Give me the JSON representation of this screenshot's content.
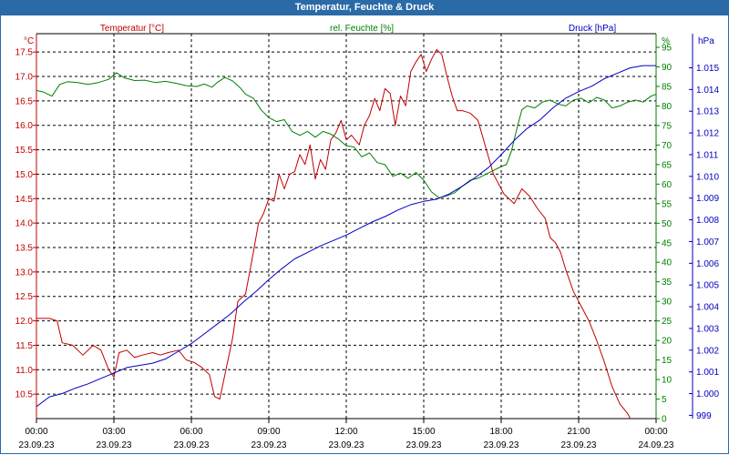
{
  "window": {
    "title": "Temperatur, Feuchte & Druck"
  },
  "chart_data": {
    "type": "line",
    "x_ticks": [
      {
        "time": "00:00",
        "date": "23.09.23"
      },
      {
        "time": "03:00",
        "date": "23.09.23"
      },
      {
        "time": "06:00",
        "date": "23.09.23"
      },
      {
        "time": "09:00",
        "date": "23.09.23"
      },
      {
        "time": "12:00",
        "date": "23.09.23"
      },
      {
        "time": "15:00",
        "date": "23.09.23"
      },
      {
        "time": "18:00",
        "date": "23.09.23"
      },
      {
        "time": "21:00",
        "date": "23.09.23"
      },
      {
        "time": "00:00",
        "date": "24.09.23"
      }
    ],
    "xlim": [
      0,
      24
    ],
    "grid": true,
    "axes": {
      "temperature": {
        "label": "Temperatur [°C]",
        "unit": "°C",
        "color": "#c00000",
        "ylim": [
          10.0,
          17.875
        ],
        "ticks": [
          "10.5",
          "11.0",
          "11.5",
          "12.0",
          "12.5",
          "13.0",
          "13.5",
          "14.0",
          "14.5",
          "15.0",
          "15.5",
          "16.0",
          "16.5",
          "17.0",
          "17.5"
        ]
      },
      "humidity": {
        "label": "rel. Feuchte [%]",
        "unit": "%",
        "color": "#008000",
        "ylim": [
          0,
          98.5
        ],
        "ticks": [
          "0",
          "5",
          "10",
          "15",
          "20",
          "25",
          "30",
          "35",
          "40",
          "45",
          "50",
          "55",
          "60",
          "65",
          "70",
          "75",
          "80",
          "85",
          "90",
          "95"
        ]
      },
      "pressure": {
        "label": "Druck [hPa]",
        "unit": "hPa",
        "color": "#0000c0",
        "ylim": [
          998.85,
          1016.57
        ],
        "ticks": [
          "999",
          "1.000",
          "1.001",
          "1.002",
          "1.003",
          "1.004",
          "1.005",
          "1.006",
          "1.007",
          "1.008",
          "1.009",
          "1.010",
          "1.011",
          "1.012",
          "1.013",
          "1.014",
          "1.015"
        ]
      }
    },
    "series": [
      {
        "name": "Temperatur [°C]",
        "axis": "temperature",
        "color": "#c00000",
        "x": [
          0,
          0.5,
          0.8,
          1.0,
          1.4,
          1.8,
          2.2,
          2.5,
          2.8,
          3.0,
          3.2,
          3.5,
          3.8,
          4.1,
          4.5,
          4.8,
          5.1,
          5.5,
          5.8,
          6.1,
          6.4,
          6.7,
          6.9,
          7.1,
          7.3,
          7.6,
          7.8,
          8.1,
          8.4,
          8.6,
          8.8,
          9.0,
          9.2,
          9.4,
          9.6,
          9.8,
          10.0,
          10.2,
          10.4,
          10.6,
          10.8,
          11.0,
          11.2,
          11.4,
          11.6,
          11.8,
          12.0,
          12.2,
          12.5,
          12.7,
          12.9,
          13.1,
          13.3,
          13.5,
          13.7,
          13.9,
          14.1,
          14.3,
          14.5,
          14.7,
          14.9,
          15.1,
          15.3,
          15.5,
          15.7,
          15.9,
          16.1,
          16.3,
          16.5,
          16.8,
          17.1,
          17.4,
          17.7,
          17.9,
          18.1,
          18.3,
          18.5,
          18.8,
          19.1,
          19.4,
          19.7,
          19.9,
          20.1,
          20.3,
          20.5,
          20.8,
          21.1,
          21.4,
          21.7,
          22.0,
          22.3,
          22.6,
          22.9,
          23.2,
          23.5,
          23.8,
          24.0
        ],
        "y": [
          12.05,
          12.05,
          12.0,
          11.55,
          11.5,
          11.3,
          11.5,
          11.4,
          11.0,
          10.85,
          11.35,
          11.4,
          11.25,
          11.3,
          11.35,
          11.3,
          11.35,
          11.4,
          11.2,
          11.15,
          11.05,
          10.9,
          10.45,
          10.4,
          10.9,
          11.65,
          12.4,
          12.55,
          13.4,
          14.0,
          14.2,
          14.5,
          14.45,
          15.0,
          14.7,
          15.0,
          15.05,
          15.4,
          15.2,
          15.6,
          14.9,
          15.3,
          15.1,
          15.7,
          15.85,
          16.1,
          15.7,
          15.8,
          15.6,
          16.0,
          16.2,
          16.55,
          16.3,
          16.75,
          16.65,
          16.0,
          16.6,
          16.4,
          17.1,
          17.3,
          17.45,
          17.1,
          17.35,
          17.55,
          17.45,
          17.0,
          16.6,
          16.3,
          16.3,
          16.25,
          16.1,
          15.55,
          15.0,
          14.8,
          14.6,
          14.5,
          14.4,
          14.7,
          14.55,
          14.3,
          14.1,
          13.7,
          13.6,
          13.4,
          13.05,
          12.6,
          12.3,
          12.0,
          11.6,
          11.15,
          10.65,
          10.3,
          10.1,
          9.8,
          9.5,
          9.2,
          9.0
        ]
      },
      {
        "name": "rel. Feuchte [%]",
        "axis": "humidity",
        "color": "#008000",
        "x": [
          0,
          0.3,
          0.6,
          0.9,
          1.2,
          1.6,
          2.0,
          2.4,
          2.8,
          3.1,
          3.4,
          3.8,
          4.2,
          4.6,
          5.0,
          5.4,
          5.8,
          6.2,
          6.5,
          6.8,
          7.0,
          7.3,
          7.6,
          7.9,
          8.1,
          8.4,
          8.7,
          9.0,
          9.3,
          9.6,
          9.9,
          10.2,
          10.5,
          10.8,
          11.1,
          11.4,
          11.7,
          12.0,
          12.3,
          12.6,
          12.9,
          13.2,
          13.5,
          13.8,
          14.1,
          14.4,
          14.7,
          15.0,
          15.3,
          15.6,
          15.9,
          16.2,
          16.5,
          16.8,
          17.1,
          17.4,
          17.7,
          18.0,
          18.2,
          18.4,
          18.6,
          18.8,
          19.0,
          19.3,
          19.6,
          19.9,
          20.2,
          20.5,
          20.8,
          21.1,
          21.4,
          21.7,
          22.0,
          22.3,
          22.6,
          22.9,
          23.2,
          23.5,
          23.8,
          24.0
        ],
        "y": [
          84,
          83.5,
          82.5,
          85.5,
          86.2,
          86.0,
          85.5,
          86.0,
          86.8,
          88.5,
          87.2,
          86.5,
          86.6,
          86.0,
          86.3,
          85.8,
          85.2,
          85.0,
          85.6,
          84.8,
          86.0,
          87.3,
          86.4,
          84.6,
          83.0,
          82.0,
          79.0,
          77.0,
          76.0,
          76.5,
          73.5,
          72.5,
          73.5,
          72.0,
          73.5,
          72.8,
          71.5,
          69.8,
          69.5,
          67.0,
          68.0,
          65.5,
          65.0,
          62.0,
          62.8,
          61.5,
          63.0,
          61.0,
          58.0,
          56.5,
          57.0,
          57.8,
          59.5,
          61.0,
          61.5,
          62.5,
          63.5,
          64.5,
          65.0,
          68.5,
          74.0,
          79.0,
          80.0,
          79.5,
          81.0,
          81.5,
          80.5,
          80.0,
          81.5,
          82.0,
          80.8,
          82.2,
          81.5,
          79.5,
          80.0,
          81.0,
          81.5,
          81.0,
          82.5,
          83.0
        ]
      },
      {
        "name": "Druck [hPa]",
        "axis": "pressure",
        "color": "#0000c0",
        "x": [
          0,
          0.5,
          1.0,
          1.5,
          2.0,
          2.5,
          3.0,
          3.5,
          4.0,
          4.5,
          5.0,
          5.5,
          6.0,
          6.5,
          7.0,
          7.5,
          8.0,
          8.5,
          9.0,
          9.5,
          10.0,
          10.5,
          11.0,
          11.5,
          12.0,
          12.5,
          13.0,
          13.5,
          14.0,
          14.5,
          15.0,
          15.5,
          16.0,
          16.5,
          17.0,
          17.5,
          18.0,
          18.5,
          19.0,
          19.5,
          20.0,
          20.5,
          21.0,
          21.5,
          22.0,
          22.5,
          23.0,
          23.5,
          24.0
        ],
        "y": [
          999.4,
          999.85,
          1000.0,
          1000.25,
          1000.45,
          1000.7,
          1000.95,
          1001.2,
          1001.3,
          1001.4,
          1001.6,
          1001.95,
          1002.3,
          1002.75,
          1003.2,
          1003.65,
          1004.2,
          1004.7,
          1005.25,
          1005.75,
          1006.2,
          1006.5,
          1006.8,
          1007.05,
          1007.3,
          1007.6,
          1007.9,
          1008.15,
          1008.45,
          1008.7,
          1008.85,
          1008.95,
          1009.2,
          1009.55,
          1009.95,
          1010.4,
          1011.0,
          1011.65,
          1012.2,
          1012.6,
          1013.15,
          1013.6,
          1013.9,
          1014.15,
          1014.5,
          1014.75,
          1015.0,
          1015.1,
          1015.1
        ]
      }
    ]
  }
}
